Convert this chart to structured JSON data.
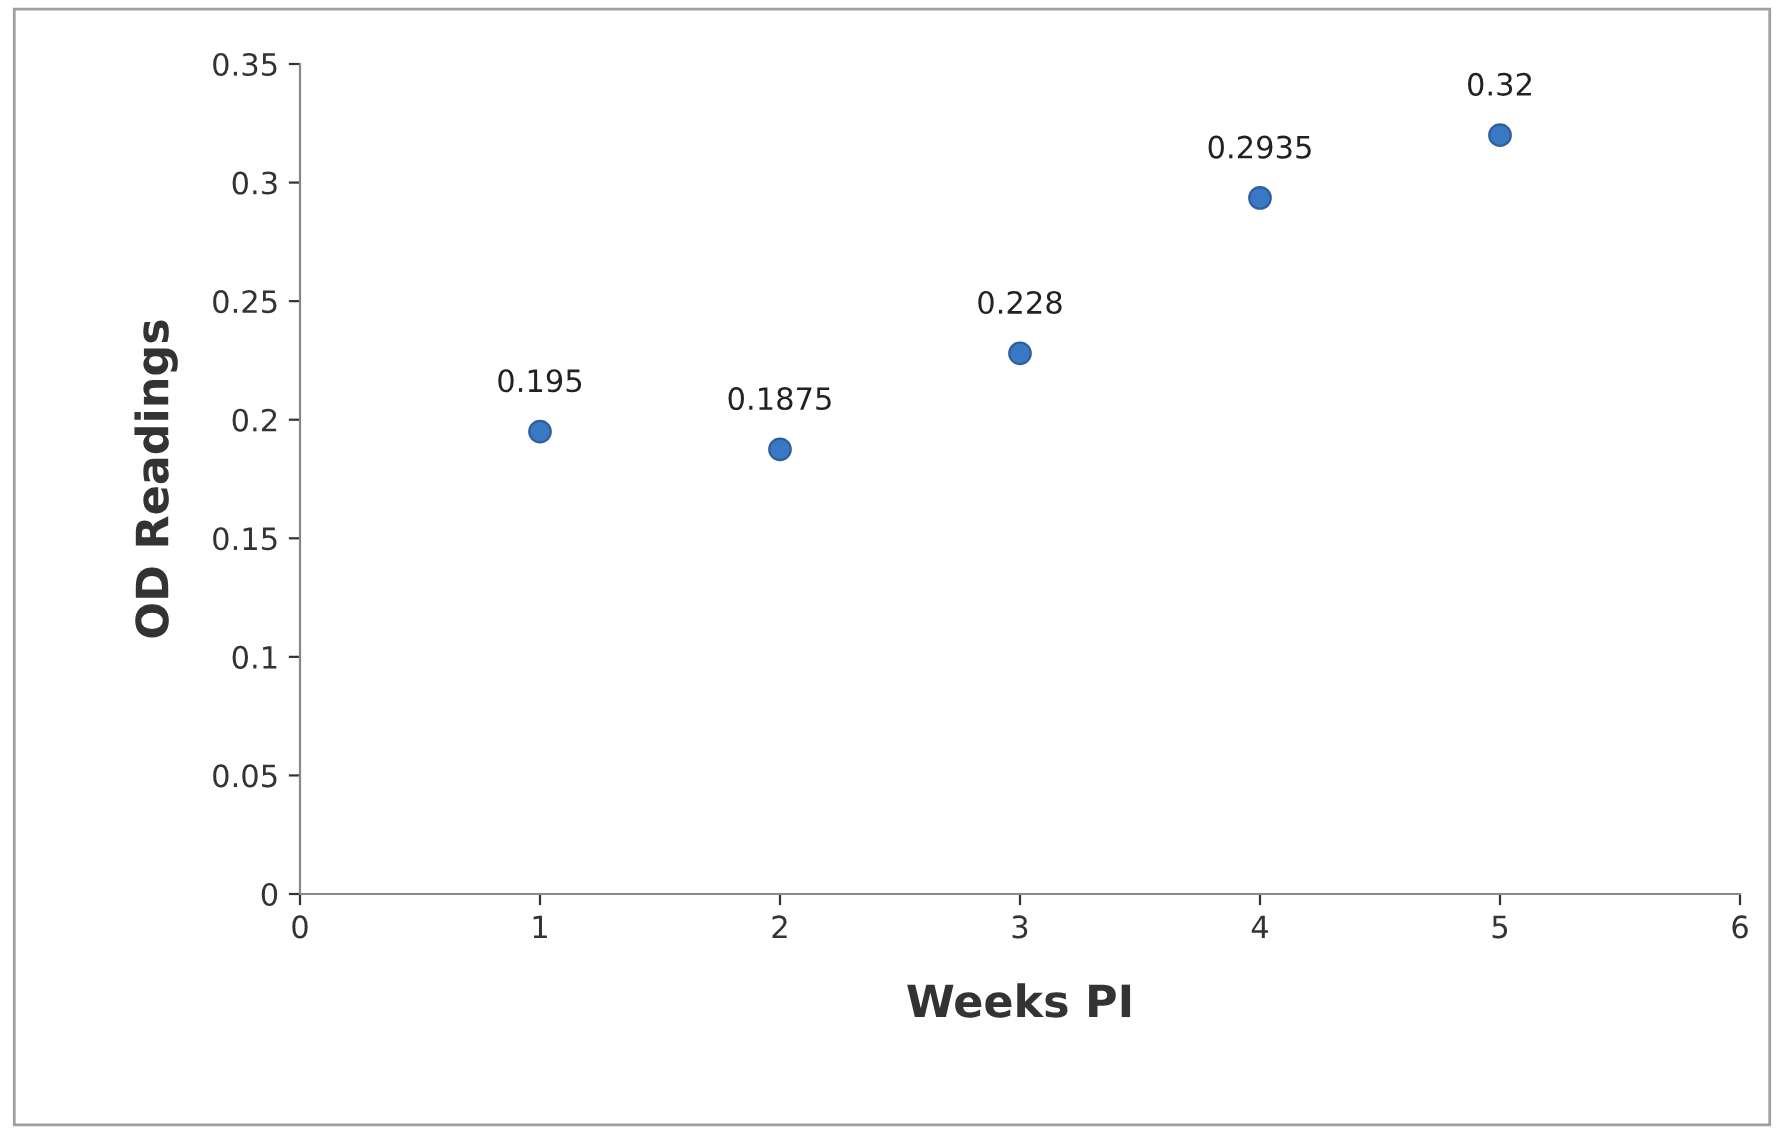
{
  "chart_data": {
    "type": "scatter",
    "xlabel": "Weeks PI",
    "ylabel": "OD Readings",
    "x": [
      1,
      2,
      3,
      4,
      5
    ],
    "series": [
      {
        "color": "#3b78c4",
        "values": [
          0.195,
          0.1875,
          0.228,
          0.2935,
          0.32
        ]
      }
    ],
    "xlim": [
      0,
      6
    ],
    "xticks": [
      0,
      1,
      2,
      3,
      4,
      5,
      6
    ],
    "ylim": [
      0,
      0.35
    ],
    "yticks": [
      0,
      0.05,
      0.1,
      0.15,
      0.2,
      0.25,
      0.3,
      0.35
    ],
    "data_labels": true,
    "grid": false,
    "legend": false,
    "marker": "circle"
  }
}
